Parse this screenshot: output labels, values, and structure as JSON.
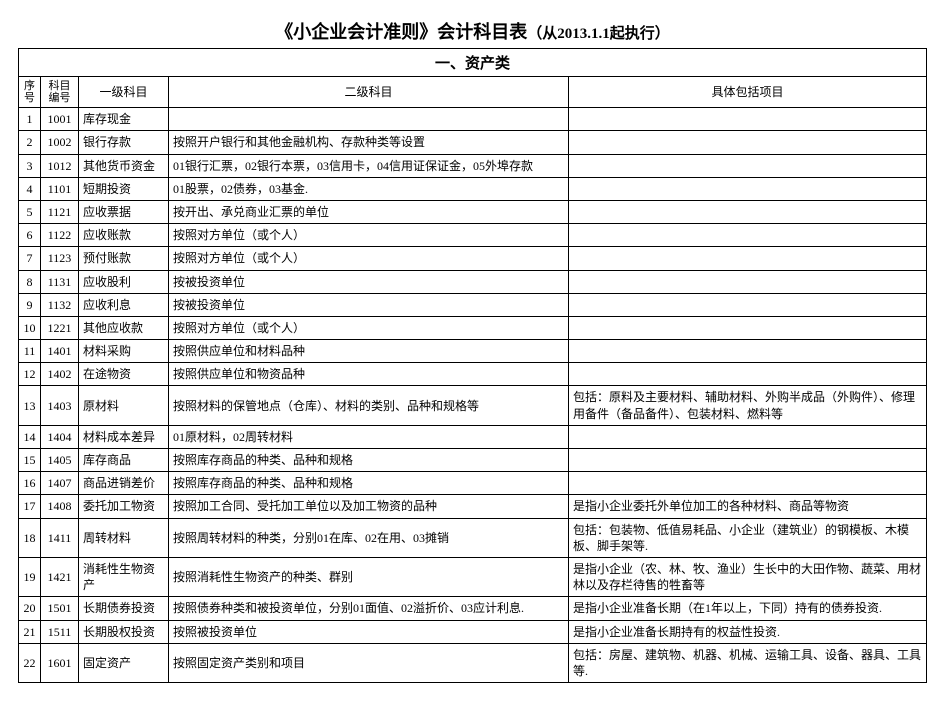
{
  "title_main": "《小企业会计准则》会计科目表",
  "title_suffix": "（从2013.1.1起执行）",
  "section_header": "一、资产类",
  "columns": {
    "seq": "序号",
    "code": "科目编号",
    "level1": "一级科目",
    "level2": "二级科目",
    "detail": "具体包括项目"
  },
  "rows": [
    {
      "seq": "1",
      "code": "1001",
      "l1": "库存现金",
      "l2": "",
      "d": ""
    },
    {
      "seq": "2",
      "code": "1002",
      "l1": "银行存款",
      "l2": "按照开户银行和其他金融机构、存款种类等设置",
      "d": ""
    },
    {
      "seq": "3",
      "code": "1012",
      "l1": "其他货币资金",
      "l2": "01银行汇票，02银行本票，03信用卡，04信用证保证金，05外埠存款",
      "d": ""
    },
    {
      "seq": "4",
      "code": "1101",
      "l1": "短期投资",
      "l2": "01股票，02债券，03基金.",
      "d": ""
    },
    {
      "seq": "5",
      "code": "1121",
      "l1": "应收票据",
      "l2": "按开出、承兑商业汇票的单位",
      "d": ""
    },
    {
      "seq": "6",
      "code": "1122",
      "l1": "应收账款",
      "l2": "按照对方单位（或个人）",
      "d": ""
    },
    {
      "seq": "7",
      "code": "1123",
      "l1": "预付账款",
      "l2": "按照对方单位（或个人）",
      "d": ""
    },
    {
      "seq": "8",
      "code": "1131",
      "l1": "应收股利",
      "l2": "按被投资单位",
      "d": ""
    },
    {
      "seq": "9",
      "code": "1132",
      "l1": "应收利息",
      "l2": "按被投资单位",
      "d": ""
    },
    {
      "seq": "10",
      "code": "1221",
      "l1": "其他应收款",
      "l2": "按照对方单位（或个人）",
      "d": ""
    },
    {
      "seq": "11",
      "code": "1401",
      "l1": "材料采购",
      "l2": "按照供应单位和材料品种",
      "d": ""
    },
    {
      "seq": "12",
      "code": "1402",
      "l1": "在途物资",
      "l2": "按照供应单位和物资品种",
      "d": ""
    },
    {
      "seq": "13",
      "code": "1403",
      "l1": "原材料",
      "l2": "按照材料的保管地点（仓库）、材料的类别、品种和规格等",
      "d": "包括：原料及主要材料、辅助材料、外购半成品（外购件）、修理用备件（备品备件）、包装材料、燃料等"
    },
    {
      "seq": "14",
      "code": "1404",
      "l1": "材料成本差异",
      "l2": "01原材料，02周转材料",
      "d": ""
    },
    {
      "seq": "15",
      "code": "1405",
      "l1": "库存商品",
      "l2": "按照库存商品的种类、品种和规格",
      "d": ""
    },
    {
      "seq": "16",
      "code": "1407",
      "l1": "商品进销差价",
      "l2": "按照库存商品的种类、品种和规格",
      "d": ""
    },
    {
      "seq": "17",
      "code": "1408",
      "l1": "委托加工物资",
      "l2": "按照加工合同、受托加工单位以及加工物资的品种",
      "d": "是指小企业委托外单位加工的各种材料、商品等物资"
    },
    {
      "seq": "18",
      "code": "1411",
      "l1": "周转材料",
      "l2": "按照周转材料的种类，分别01在库、02在用、03摊销",
      "d": "包括：包装物、低值易耗品、小企业（建筑业）的钢模板、木模板、脚手架等."
    },
    {
      "seq": "19",
      "code": "1421",
      "l1": "消耗性生物资产",
      "l2": "按照消耗性生物资产的种类、群别",
      "d": "是指小企业（农、林、牧、渔业）生长中的大田作物、蔬菜、用材林以及存栏待售的牲畜等"
    },
    {
      "seq": "20",
      "code": "1501",
      "l1": "长期债券投资",
      "l2": "按照债券种类和被投资单位，分别01面值、02溢折价、03应计利息.",
      "d": "是指小企业准备长期（在1年以上，下同）持有的债券投资."
    },
    {
      "seq": "21",
      "code": "1511",
      "l1": "长期股权投资",
      "l2": "按照被投资单位",
      "d": "是指小企业准备长期持有的权益性投资."
    },
    {
      "seq": "22",
      "code": "1601",
      "l1": "固定资产",
      "l2": "按照固定资产类别和项目",
      "d": "包括：房屋、建筑物、机器、机械、运输工具、设备、器具、工具等."
    }
  ]
}
